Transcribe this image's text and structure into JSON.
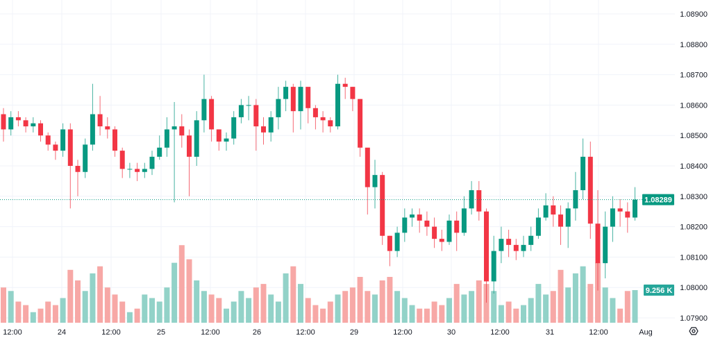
{
  "chart_data": {
    "type": "candlestick",
    "title": "",
    "colors": {
      "up": "#089981",
      "down": "#f23645",
      "volume_up": "#92d2c8",
      "volume_down": "#f7a8a6",
      "grid": "#f0f3fa",
      "last_price": "#089981"
    },
    "open_first": 1.0857,
    "close": [
      1.0852,
      1.0856,
      1.0855,
      1.0853,
      1.0854,
      1.085,
      1.0847,
      1.0845,
      1.0852,
      1.084,
      1.0838,
      1.0847,
      1.0857,
      1.0853,
      1.0852,
      1.0845,
      1.0839,
      1.0839,
      1.0838,
      1.0839,
      1.0843,
      1.0846,
      1.0852,
      1.0853,
      1.085,
      1.0843,
      1.0855,
      1.0862,
      1.0852,
      1.0848,
      1.0849,
      1.0856,
      1.086,
      1.086,
      1.0853,
      1.0851,
      1.0856,
      1.0862,
      1.0866,
      1.0858,
      1.0866,
      1.0859,
      1.0856,
      1.0855,
      1.0853,
      1.0867,
      1.0866,
      1.0862,
      1.0846,
      1.0833,
      1.0837,
      1.0817,
      1.0812,
      1.0818,
      1.0823,
      1.0824,
      1.0822,
      1.082,
      1.0816,
      1.0815,
      1.0822,
      1.0818,
      1.0826,
      1.0832,
      1.0825,
      1.0802,
      1.0812,
      1.0816,
      1.0814,
      1.0812,
      1.0814,
      1.0817,
      1.0823,
      1.0827,
      1.0824,
      1.082,
      1.0826,
      1.0832,
      1.0843,
      1.0821,
      1.0808,
      1.082,
      1.0826,
      1.0825,
      1.0823,
      1.08289
    ],
    "high": [
      1.0859,
      1.0858,
      1.0858,
      1.0856,
      1.0856,
      1.0855,
      1.0851,
      1.0848,
      1.0854,
      1.0854,
      1.0842,
      1.0849,
      1.0867,
      1.0863,
      1.0856,
      1.0853,
      1.0846,
      1.0841,
      1.0841,
      1.0841,
      1.0845,
      1.085,
      1.0856,
      1.0861,
      1.0857,
      1.0852,
      1.0858,
      1.087,
      1.0863,
      1.0852,
      1.0851,
      1.0858,
      1.0862,
      1.0863,
      1.0862,
      1.0856,
      1.0858,
      1.0866,
      1.0868,
      1.0867,
      1.0868,
      1.0864,
      1.086,
      1.0858,
      1.0856,
      1.087,
      1.0869,
      1.0866,
      1.0862,
      1.084,
      1.0842,
      1.0838,
      1.0817,
      1.082,
      1.0826,
      1.0826,
      1.0826,
      1.0825,
      1.0823,
      1.0819,
      1.0824,
      1.0825,
      1.083,
      1.0835,
      1.0835,
      1.0826,
      1.0817,
      1.082,
      1.0819,
      1.0816,
      1.0817,
      1.082,
      1.0826,
      1.0831,
      1.083,
      1.0827,
      1.0828,
      1.0838,
      1.0849,
      1.0848,
      1.0832,
      1.0825,
      1.083,
      1.0829,
      1.0828,
      1.0833
    ],
    "low": [
      1.0848,
      1.085,
      1.0853,
      1.0851,
      1.0851,
      1.0848,
      1.0845,
      1.0842,
      1.0843,
      1.0826,
      1.083,
      1.0836,
      1.0845,
      1.085,
      1.0849,
      1.0843,
      1.0836,
      1.0836,
      1.0835,
      1.0836,
      1.0837,
      1.0842,
      1.0843,
      1.0828,
      1.0846,
      1.083,
      1.084,
      1.0851,
      1.0848,
      1.0845,
      1.0845,
      1.0847,
      1.0854,
      1.0855,
      1.0845,
      1.0847,
      1.0848,
      1.0852,
      1.0858,
      1.0851,
      1.0852,
      1.0854,
      1.0852,
      1.0851,
      1.0851,
      1.0852,
      1.0862,
      1.0858,
      1.0843,
      1.0824,
      1.0826,
      1.0814,
      1.0807,
      1.081,
      1.0815,
      1.082,
      1.0818,
      1.0817,
      1.0813,
      1.0812,
      1.0814,
      1.0812,
      1.0817,
      1.0824,
      1.0822,
      1.0795,
      1.0798,
      1.0808,
      1.081,
      1.0809,
      1.081,
      1.0812,
      1.0816,
      1.0822,
      1.082,
      1.0814,
      1.0813,
      1.0822,
      1.0829,
      1.0816,
      1.0799,
      1.0803,
      1.0815,
      1.082,
      1.0818,
      1.0822
    ],
    "volume_k": [
      10,
      9,
      6,
      5,
      3,
      4,
      6,
      5,
      7,
      15,
      12,
      9,
      14,
      16,
      10,
      8,
      6,
      3,
      4,
      8,
      7,
      6,
      10,
      17,
      22,
      18,
      12,
      9,
      8,
      7,
      4,
      6,
      9,
      7,
      10,
      11,
      8,
      6,
      14,
      16,
      11,
      7,
      5,
      4,
      6,
      8,
      9,
      10,
      13,
      9,
      8,
      12,
      13,
      9,
      7,
      5,
      4,
      4,
      6,
      5,
      7,
      11,
      8,
      9,
      12,
      11,
      9,
      5,
      6,
      4,
      5,
      7,
      11,
      8,
      9,
      15,
      10,
      14,
      16,
      11,
      17,
      10,
      7,
      4,
      9,
      9.256
    ],
    "ylim": [
      1.0788,
      1.0894
    ],
    "y_ticks": [
      "1.08900",
      "1.08800",
      "1.08700",
      "1.08600",
      "1.08500",
      "1.08400",
      "1.08300",
      "1.08200",
      "1.08100",
      "1.08000",
      "1.07900"
    ],
    "x_ticks": [
      "12:00",
      "24",
      "12:00",
      "25",
      "12:00",
      "26",
      "12:00",
      "29",
      "12:00",
      "30",
      "12:00",
      "31",
      "12:00",
      "Aug"
    ],
    "last_price_label": "1.08289",
    "last_volume_label": "9.256 K",
    "grid": true
  },
  "ui": {
    "settings_icon": "gear-icon"
  }
}
